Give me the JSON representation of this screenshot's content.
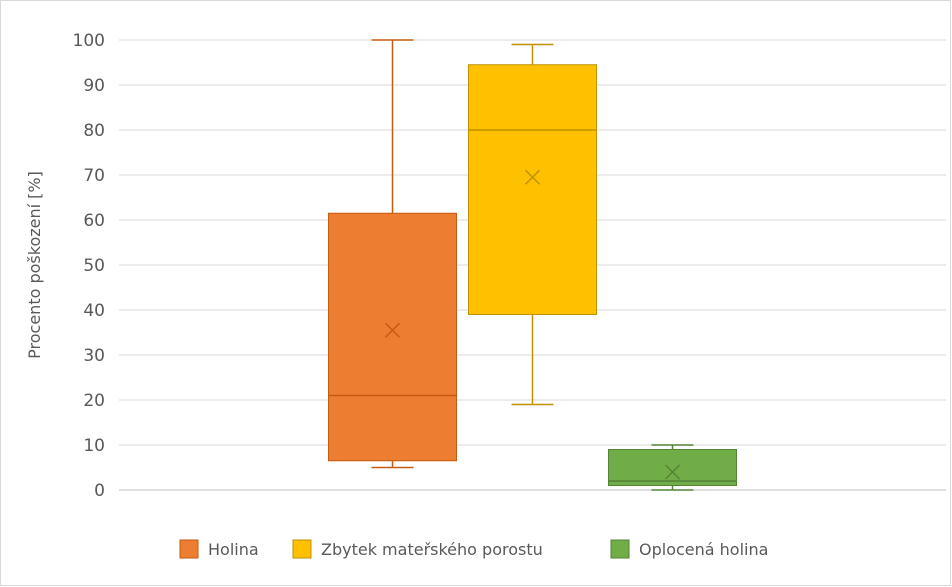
{
  "chart_data": {
    "type": "box",
    "title": "",
    "xlabel": "",
    "ylabel": "Procento poškození [%]",
    "ylim": [
      0,
      100
    ],
    "yticks": [
      0,
      10,
      20,
      30,
      40,
      50,
      60,
      70,
      80,
      90,
      100
    ],
    "grid": true,
    "legend_position": "bottom",
    "series": [
      {
        "name": "Holina",
        "color": "#ED7D31",
        "stroke": "#C55A11",
        "min": 5,
        "q1": 6.5,
        "median": 21,
        "q3": 61.5,
        "max": 100,
        "mean": 35.5
      },
      {
        "name": "Zbytek mateřského porostu",
        "color": "#FFC000",
        "stroke": "#BF9000",
        "min": 19,
        "q1": 39,
        "median": 80,
        "q3": 94.5,
        "max": 99,
        "mean": 69.5
      },
      {
        "name": "Oplocená holina",
        "color": "#70AD47",
        "stroke": "#548235",
        "min": 0,
        "q1": 1,
        "median": 2,
        "q3": 9,
        "max": 10,
        "mean": 4
      }
    ]
  }
}
